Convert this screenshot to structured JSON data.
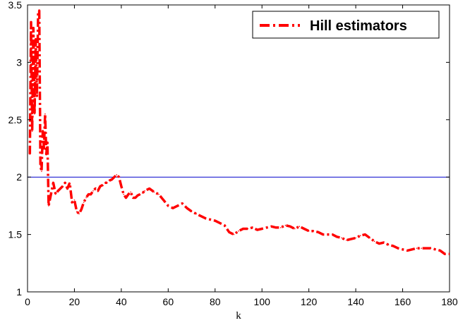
{
  "chart_data": {
    "type": "line",
    "title": "",
    "xlabel": "k",
    "ylabel": "",
    "xlim": [
      0,
      180
    ],
    "ylim": [
      1,
      3.5
    ],
    "x_ticks": [
      0,
      20,
      40,
      60,
      80,
      100,
      120,
      140,
      160,
      180
    ],
    "x_tick_labels": [
      "0",
      "20",
      "40",
      "60",
      "80",
      "100",
      "120",
      "140",
      "160",
      "180"
    ],
    "y_ticks": [
      1,
      1.5,
      2,
      2.5,
      3,
      3.5
    ],
    "y_tick_labels": [
      "1",
      "1.5",
      "2",
      "2.5",
      "3",
      "3.5"
    ],
    "grid": false,
    "legend": {
      "position": "top-right",
      "entries": [
        "Hill estimators"
      ]
    },
    "reference_line": {
      "y": 2,
      "color": "#0000cc"
    },
    "series": [
      {
        "name": "Hill estimators",
        "color": "#ff0000",
        "style": "dash-dot",
        "x": [
          1,
          1.5,
          2,
          2.5,
          3,
          3.5,
          4,
          4.5,
          5,
          5.5,
          6,
          6.5,
          7,
          7.5,
          8,
          8.5,
          9,
          10,
          11,
          12,
          13,
          14,
          15,
          16,
          17,
          18,
          19,
          20,
          21,
          22,
          23,
          24,
          25,
          26,
          27,
          28,
          29,
          30,
          31,
          32,
          33,
          34,
          35,
          36,
          37,
          38,
          39,
          40,
          41,
          42,
          43,
          44,
          45,
          46,
          47,
          48,
          49,
          50,
          52,
          54,
          56,
          58,
          60,
          62,
          64,
          66,
          68,
          70,
          72,
          74,
          76,
          78,
          80,
          82,
          84,
          86,
          88,
          90,
          92,
          94,
          96,
          98,
          100,
          102,
          104,
          106,
          108,
          110,
          112,
          114,
          116,
          118,
          120,
          122,
          124,
          126,
          128,
          130,
          132,
          134,
          136,
          138,
          140,
          142,
          144,
          146,
          148,
          150,
          152,
          154,
          156,
          158,
          160,
          162,
          164,
          166,
          168,
          170,
          172,
          174,
          176,
          178,
          180
        ],
        "y": [
          2.2,
          3.35,
          2.4,
          3.3,
          2.55,
          3.2,
          2.7,
          3.42,
          3.45,
          2.1,
          2.05,
          2.4,
          2.25,
          2.55,
          2.2,
          2.3,
          1.75,
          1.85,
          1.95,
          1.85,
          1.88,
          1.9,
          1.92,
          1.95,
          1.9,
          1.95,
          1.78,
          1.8,
          1.7,
          1.68,
          1.72,
          1.78,
          1.82,
          1.85,
          1.85,
          1.88,
          1.9,
          1.88,
          1.92,
          1.93,
          1.95,
          1.95,
          1.97,
          1.98,
          2.0,
          2.02,
          2.0,
          1.92,
          1.85,
          1.82,
          1.85,
          1.87,
          1.82,
          1.82,
          1.84,
          1.85,
          1.86,
          1.88,
          1.9,
          1.87,
          1.85,
          1.8,
          1.75,
          1.73,
          1.75,
          1.77,
          1.73,
          1.7,
          1.68,
          1.66,
          1.64,
          1.63,
          1.62,
          1.6,
          1.58,
          1.52,
          1.5,
          1.53,
          1.55,
          1.55,
          1.56,
          1.54,
          1.55,
          1.56,
          1.57,
          1.56,
          1.56,
          1.58,
          1.57,
          1.55,
          1.57,
          1.55,
          1.53,
          1.53,
          1.52,
          1.5,
          1.5,
          1.5,
          1.48,
          1.47,
          1.45,
          1.46,
          1.47,
          1.49,
          1.5,
          1.47,
          1.44,
          1.42,
          1.43,
          1.41,
          1.4,
          1.38,
          1.37,
          1.36,
          1.37,
          1.38,
          1.38,
          1.38,
          1.38,
          1.37,
          1.36,
          1.33,
          1.33
        ]
      }
    ]
  }
}
